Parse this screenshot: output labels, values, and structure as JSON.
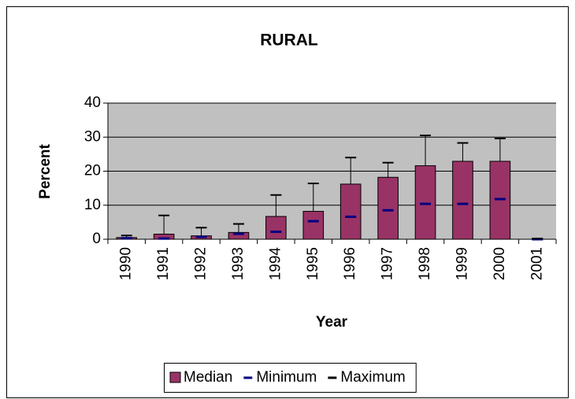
{
  "chart_data": {
    "type": "bar",
    "title": "RURAL",
    "xlabel": "Year",
    "ylabel": "Percent",
    "categories": [
      "1990",
      "1991",
      "1992",
      "1993",
      "1994",
      "1995",
      "1996",
      "1997",
      "1998",
      "1999",
      "2000",
      "2001"
    ],
    "series": [
      {
        "name": "Median",
        "color": "#993366",
        "mark": "bar",
        "values": [
          0.5,
          1.5,
          1,
          2,
          6.7,
          8.2,
          16.2,
          18.2,
          21.6,
          22.9,
          22.9,
          0
        ]
      },
      {
        "name": "Minimum",
        "color": "#000080",
        "mark": "dash",
        "values": [
          0.3,
          0.2,
          0.7,
          1.6,
          2.2,
          5.3,
          6.6,
          8.5,
          10.4,
          10.4,
          11.8,
          0
        ]
      },
      {
        "name": "Maximum",
        "color": "#000000",
        "mark": "whisker",
        "values": [
          1.1,
          7,
          3.4,
          4.5,
          13,
          16.4,
          24,
          22.5,
          30.5,
          28.3,
          29.6,
          0.2
        ]
      }
    ],
    "ylim": [
      0,
      40
    ],
    "yticks": [
      0,
      10,
      20,
      30,
      40
    ],
    "grid": true,
    "plot_background": "#c0c0c0",
    "legend": "bottom"
  }
}
